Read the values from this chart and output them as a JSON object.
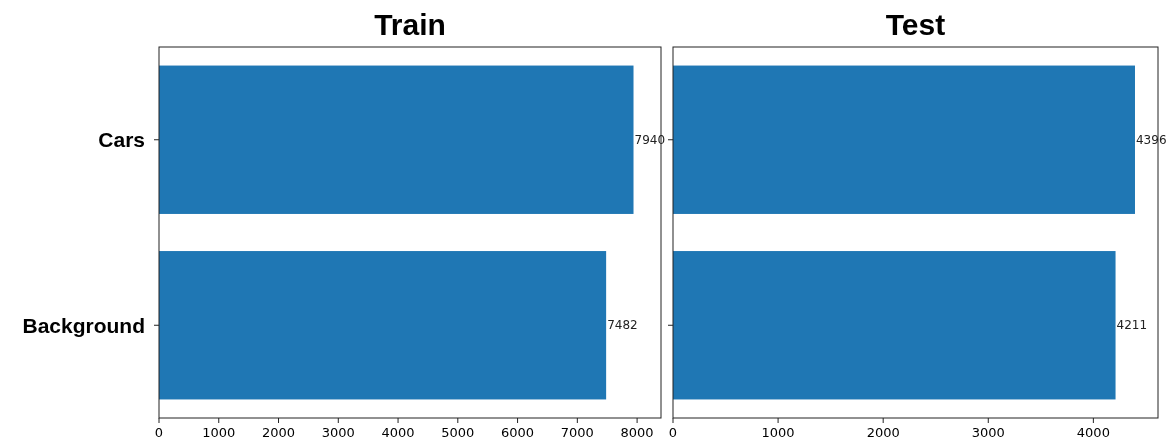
{
  "chart_data": [
    {
      "type": "bar",
      "orientation": "horizontal",
      "title": "Train",
      "categories": [
        "Cars",
        "Background"
      ],
      "series": [
        {
          "color": "#1f77b4",
          "values": [
            7940,
            7482
          ]
        }
      ],
      "xlim": [
        0,
        8400
      ],
      "xticks": [
        0,
        1000,
        2000,
        3000,
        4000,
        5000,
        6000,
        7000,
        8000
      ],
      "data_labels": true,
      "grid": false
    },
    {
      "type": "bar",
      "orientation": "horizontal",
      "title": "Test",
      "categories": [
        null,
        null
      ],
      "series": [
        {
          "color": "#1f77b4",
          "values": [
            4396,
            4211
          ]
        }
      ],
      "xlim": [
        0,
        4615
      ],
      "xticks": [
        0,
        1000,
        2000,
        3000,
        4000
      ],
      "data_labels": true,
      "grid": false,
      "tick_labels": "x"
    }
  ]
}
